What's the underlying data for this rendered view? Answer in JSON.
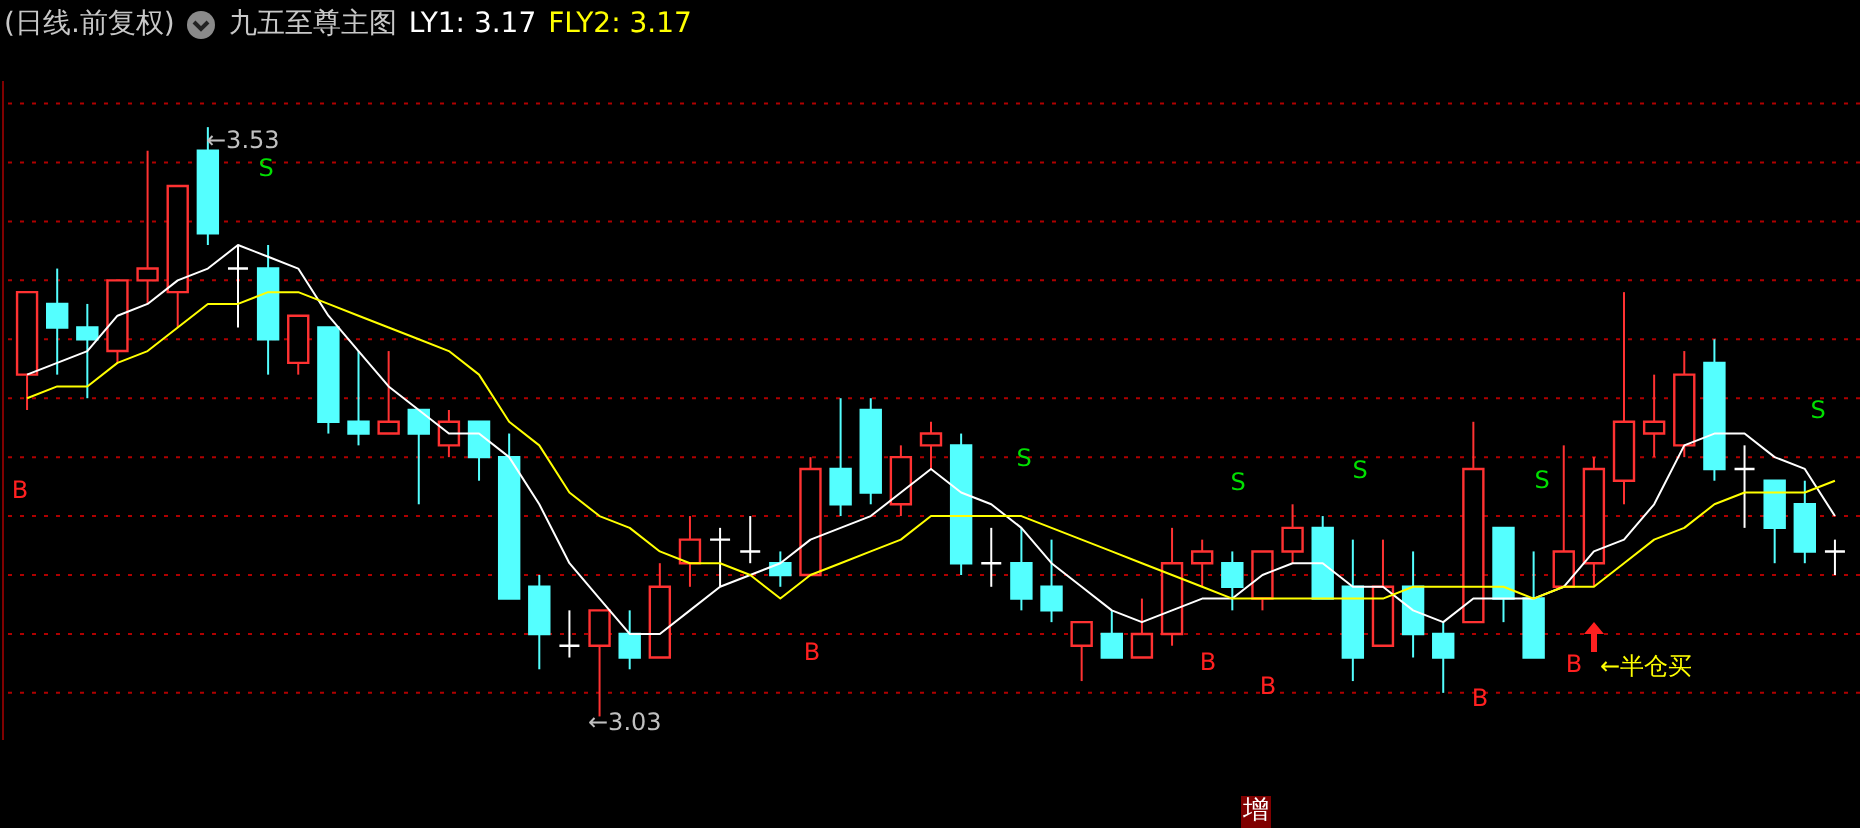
{
  "chart_data": {
    "type": "candlestick",
    "title": "(日线.前复权)",
    "subtitle": "九五至尊主图",
    "categories": [
      null,
      null,
      null,
      null,
      null,
      null,
      null,
      null,
      null,
      null,
      null,
      null,
      null,
      null,
      null,
      null,
      null,
      null,
      null,
      null,
      null,
      null,
      null,
      null,
      null,
      null,
      null,
      null,
      null,
      null,
      null,
      null,
      null,
      null,
      null,
      null,
      null,
      null,
      null,
      null,
      null,
      null,
      null,
      null,
      null,
      null,
      null,
      null,
      null,
      null,
      null,
      null,
      null,
      null,
      null,
      null,
      null,
      null,
      null,
      null,
      null
    ],
    "ylim": [
      3.01,
      3.57
    ],
    "yticks": [
      {
        "value": 3.05,
        "label": null
      },
      {
        "value": 3.1,
        "label": null
      },
      {
        "value": 3.15,
        "label": null
      },
      {
        "value": 3.2,
        "label": null
      },
      {
        "value": 3.25,
        "label": null
      },
      {
        "value": 3.3,
        "label": null
      },
      {
        "value": 3.35,
        "label": null
      },
      {
        "value": 3.4,
        "label": null
      },
      {
        "value": 3.45,
        "label": null
      },
      {
        "value": 3.5,
        "label": null
      },
      {
        "value": 3.55,
        "label": null
      }
    ],
    "grid": "y",
    "ohlc": [
      [
        3.32,
        3.39,
        3.29,
        3.39
      ],
      [
        3.38,
        3.41,
        3.32,
        3.36
      ],
      [
        3.36,
        3.38,
        3.3,
        3.35
      ],
      [
        3.34,
        3.4,
        3.33,
        3.4
      ],
      [
        3.4,
        3.51,
        3.38,
        3.41
      ],
      [
        3.39,
        3.48,
        3.36,
        3.48
      ],
      [
        3.51,
        3.53,
        3.43,
        3.44
      ],
      [
        3.41,
        3.43,
        3.36,
        3.41
      ],
      [
        3.41,
        3.43,
        3.32,
        3.35
      ],
      [
        3.33,
        3.37,
        3.32,
        3.37
      ],
      [
        3.36,
        3.36,
        3.27,
        3.28
      ],
      [
        3.28,
        3.34,
        3.26,
        3.27
      ],
      [
        3.27,
        3.34,
        3.27,
        3.28
      ],
      [
        3.29,
        3.29,
        3.21,
        3.27
      ],
      [
        3.26,
        3.29,
        3.25,
        3.28
      ],
      [
        3.28,
        3.28,
        3.23,
        3.25
      ],
      [
        3.25,
        3.27,
        3.13,
        3.13
      ],
      [
        3.14,
        3.15,
        3.07,
        3.1
      ],
      [
        3.09,
        3.12,
        3.08,
        3.09
      ],
      [
        3.09,
        3.12,
        3.03,
        3.12
      ],
      [
        3.1,
        3.12,
        3.07,
        3.08
      ],
      [
        3.08,
        3.16,
        3.08,
        3.14
      ],
      [
        3.16,
        3.2,
        3.14,
        3.18
      ],
      [
        3.18,
        3.19,
        3.14,
        3.18
      ],
      [
        3.17,
        3.2,
        3.16,
        3.17
      ],
      [
        3.16,
        3.17,
        3.14,
        3.15
      ],
      [
        3.15,
        3.25,
        3.15,
        3.24
      ],
      [
        3.24,
        3.3,
        3.2,
        3.21
      ],
      [
        3.29,
        3.3,
        3.21,
        3.22
      ],
      [
        3.21,
        3.26,
        3.2,
        3.25
      ],
      [
        3.26,
        3.28,
        3.24,
        3.27
      ],
      [
        3.26,
        3.27,
        3.15,
        3.16
      ],
      [
        3.16,
        3.19,
        3.14,
        3.16
      ],
      [
        3.16,
        3.19,
        3.12,
        3.13
      ],
      [
        3.14,
        3.18,
        3.11,
        3.12
      ],
      [
        3.09,
        3.11,
        3.06,
        3.11
      ],
      [
        3.1,
        3.12,
        3.08,
        3.08
      ],
      [
        3.08,
        3.13,
        3.08,
        3.1
      ],
      [
        3.1,
        3.19,
        3.09,
        3.16
      ],
      [
        3.16,
        3.18,
        3.14,
        3.17
      ],
      [
        3.16,
        3.17,
        3.12,
        3.14
      ],
      [
        3.13,
        3.17,
        3.12,
        3.17
      ],
      [
        3.17,
        3.21,
        3.16,
        3.19
      ],
      [
        3.19,
        3.2,
        3.13,
        3.13
      ],
      [
        3.14,
        3.18,
        3.06,
        3.08
      ],
      [
        3.09,
        3.18,
        3.09,
        3.14
      ],
      [
        3.14,
        3.17,
        3.08,
        3.1
      ],
      [
        3.1,
        3.11,
        3.05,
        3.08
      ],
      [
        3.11,
        3.28,
        3.11,
        3.24
      ],
      [
        3.19,
        3.19,
        3.11,
        3.13
      ],
      [
        3.13,
        3.17,
        3.08,
        3.08
      ],
      [
        3.14,
        3.26,
        3.14,
        3.17
      ],
      [
        3.16,
        3.25,
        3.14,
        3.24
      ],
      [
        3.23,
        3.39,
        3.21,
        3.28
      ],
      [
        3.27,
        3.32,
        3.25,
        3.28
      ],
      [
        3.26,
        3.34,
        3.25,
        3.32
      ],
      [
        3.33,
        3.35,
        3.23,
        3.24
      ],
      [
        3.24,
        3.26,
        3.19,
        3.24
      ],
      [
        3.23,
        3.23,
        3.16,
        3.19
      ],
      [
        3.21,
        3.23,
        3.16,
        3.17
      ],
      [
        3.17,
        3.18,
        3.15,
        3.17
      ]
    ],
    "series": [
      {
        "name": "LY1: 3.17",
        "type": "line",
        "color": "#ffffff",
        "values": [
          3.32,
          3.33,
          3.34,
          3.37,
          3.38,
          3.4,
          3.41,
          3.43,
          3.42,
          3.41,
          3.37,
          3.34,
          3.31,
          3.29,
          3.27,
          3.27,
          3.25,
          3.21,
          3.16,
          3.13,
          3.1,
          3.1,
          3.12,
          3.14,
          3.15,
          3.16,
          3.18,
          3.19,
          3.2,
          3.22,
          3.24,
          3.22,
          3.21,
          3.19,
          3.16,
          3.14,
          3.12,
          3.11,
          3.12,
          3.13,
          3.13,
          3.15,
          3.16,
          3.16,
          3.14,
          3.14,
          3.12,
          3.11,
          3.13,
          3.13,
          3.13,
          3.14,
          3.17,
          3.18,
          3.21,
          3.26,
          3.27,
          3.27,
          3.25,
          3.24,
          3.2
        ]
      },
      {
        "name": "FLY2: 3.17",
        "type": "line",
        "color": "#ffff00",
        "values": [
          3.3,
          3.31,
          3.31,
          3.33,
          3.34,
          3.36,
          3.38,
          3.38,
          3.39,
          3.39,
          3.38,
          3.37,
          3.36,
          3.35,
          3.34,
          3.32,
          3.28,
          3.26,
          3.22,
          3.2,
          3.19,
          3.17,
          3.16,
          3.16,
          3.15,
          3.13,
          3.15,
          3.16,
          3.17,
          3.18,
          3.2,
          3.2,
          3.2,
          3.2,
          3.19,
          3.18,
          3.17,
          3.16,
          3.15,
          3.14,
          3.13,
          3.13,
          3.13,
          3.13,
          3.13,
          3.13,
          3.14,
          3.14,
          3.14,
          3.14,
          3.13,
          3.14,
          3.14,
          3.16,
          3.18,
          3.19,
          3.21,
          3.22,
          3.22,
          3.22,
          3.23
        ]
      }
    ],
    "annotations": [
      "←3.53",
      "←3.03",
      "S",
      "B",
      "B",
      "S",
      "B",
      "S",
      "B",
      "S",
      "B",
      "S",
      "B",
      "S",
      "←半仓买",
      "增"
    ]
  }
}
